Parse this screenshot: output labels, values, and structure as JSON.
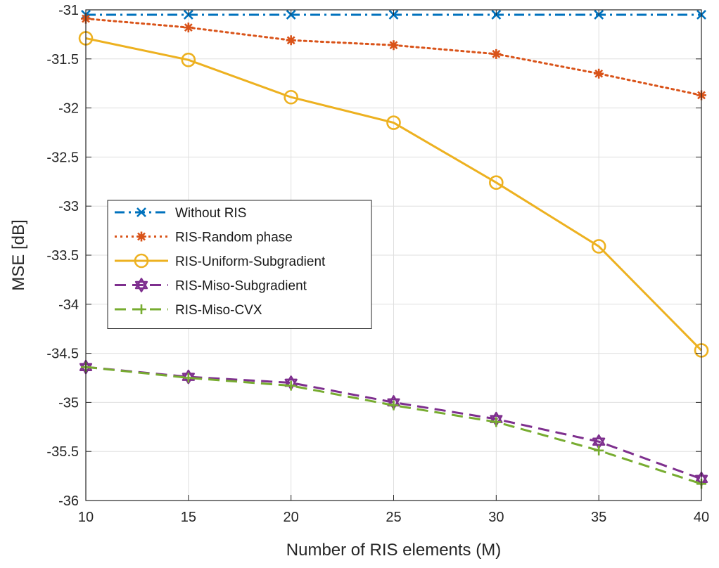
{
  "chart_data": {
    "type": "line",
    "title": "",
    "xlabel": "Number of RIS elements (M)",
    "ylabel": "MSE [dB]",
    "xlim": [
      10,
      40
    ],
    "ylim": [
      -36,
      -31
    ],
    "xticks": [
      10,
      15,
      20,
      25,
      30,
      35,
      40
    ],
    "yticks": [
      -31,
      -31.5,
      -32,
      -32.5,
      -33,
      -33.5,
      -34,
      -34.5,
      -35,
      -35.5,
      -36
    ],
    "grid": true,
    "legend_position": "middle-left",
    "x": [
      10,
      15,
      20,
      25,
      30,
      35,
      40
    ],
    "series": [
      {
        "name": "Without RIS",
        "values": [
          -31.05,
          -31.05,
          -31.05,
          -31.05,
          -31.05,
          -31.05,
          -31.05
        ],
        "color": "#0072BD",
        "dash": "dashdot",
        "marker": "x"
      },
      {
        "name": "RIS-Random phase",
        "values": [
          -31.09,
          -31.18,
          -31.31,
          -31.36,
          -31.45,
          -31.65,
          -31.87
        ],
        "color": "#D95319",
        "dash": "dotted",
        "marker": "asterisk"
      },
      {
        "name": "RIS-Uniform-Subgradient",
        "values": [
          -31.29,
          -31.51,
          -31.89,
          -32.15,
          -32.76,
          -33.41,
          -34.47
        ],
        "color": "#EDB120",
        "dash": "solid",
        "marker": "circle"
      },
      {
        "name": "RIS-Miso-Subgradient",
        "values": [
          -34.64,
          -34.74,
          -34.8,
          -35.0,
          -35.17,
          -35.4,
          -35.78
        ],
        "color": "#7E2F8E",
        "dash": "dashed",
        "marker": "hexagram"
      },
      {
        "name": "RIS-Miso-CVX",
        "values": [
          -34.64,
          -34.75,
          -34.83,
          -35.03,
          -35.2,
          -35.49,
          -35.83
        ],
        "color": "#77AC30",
        "dash": "dashed",
        "marker": "plus"
      }
    ]
  }
}
